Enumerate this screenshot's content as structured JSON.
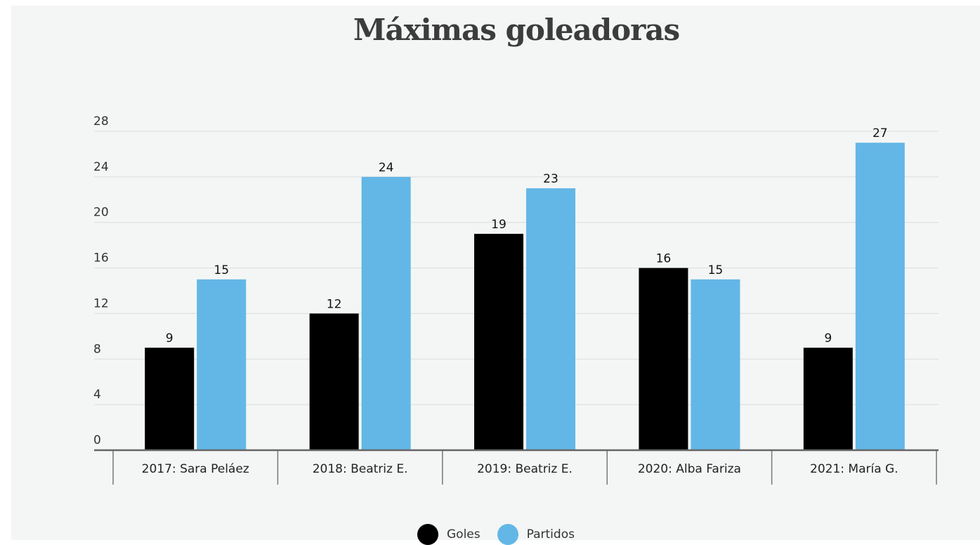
{
  "chart_data": {
    "type": "bar",
    "title": "Máximas goleadoras",
    "categories": [
      "2017: Sara Peláez",
      "2018: Beatriz E.",
      "2019: Beatriz E.",
      "2020: Alba Fariza",
      "2021: María G."
    ],
    "series": [
      {
        "name": "Goles",
        "values": [
          9,
          12,
          19,
          16,
          9
        ],
        "color": "#000000"
      },
      {
        "name": "Partidos",
        "values": [
          15,
          24,
          23,
          15,
          27
        ],
        "color": "#63b7e6"
      }
    ],
    "yticks": [
      0,
      4,
      8,
      12,
      16,
      20,
      24,
      28
    ],
    "ylim": [
      0,
      28
    ],
    "grid": true,
    "legend_position": "bottom-center"
  }
}
